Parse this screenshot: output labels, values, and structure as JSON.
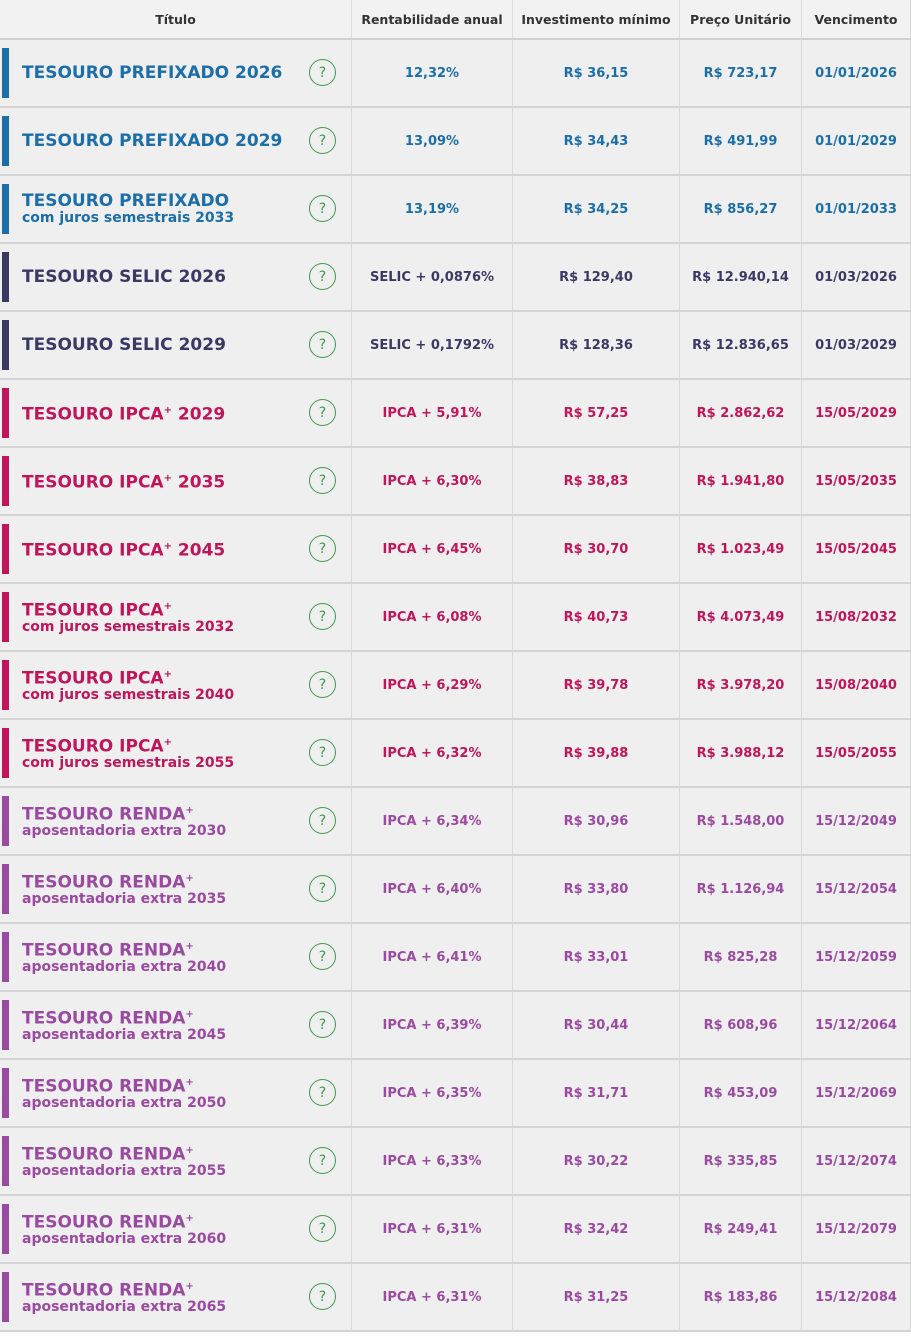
{
  "table": {
    "header": [
      "Título",
      "Rentabilidade anual",
      "Investimento mínimo",
      "Preço Unitário",
      "Vencimento"
    ],
    "help_icon": "?",
    "rows": [
      {
        "name": "TESOURO PREFIXADO",
        "year": "2026",
        "rate": "12,32%",
        "min": "R$ 36,15",
        "price": "R$ 723,17",
        "maturity": "01/01/2026",
        "color": "#1b6ea8"
      },
      {
        "name": "TESOURO PREFIXADO",
        "year": "2029",
        "rate": "13,09%",
        "min": "R$ 34,43",
        "price": "R$ 491,99",
        "maturity": "01/01/2029",
        "color": "#1b6ea8"
      },
      {
        "name": "TESOURO PREFIXADO",
        "subtitle": "com juros semestrais",
        "year": "2033",
        "rate": "13,19%",
        "min": "R$ 34,25",
        "price": "R$ 856,27",
        "maturity": "01/01/2033",
        "color": "#1b6ea8"
      },
      {
        "name": "TESOURO SELIC",
        "year": "2026",
        "rate": "SELIC + 0,0876%",
        "min": "R$ 129,40",
        "price": "R$ 12.940,14",
        "maturity": "01/03/2026",
        "color": "#3b3864"
      },
      {
        "name": "TESOURO SELIC",
        "year": "2029",
        "rate": "SELIC + 0,1792%",
        "min": "R$ 128,36",
        "price": "R$ 12.836,65",
        "maturity": "01/03/2029",
        "color": "#3b3864"
      },
      {
        "name": "TESOURO IPCA",
        "sup": "+",
        "year": "2029",
        "rate": "IPCA + 5,91%",
        "min": "R$ 57,25",
        "price": "R$ 2.862,62",
        "maturity": "15/05/2029",
        "color": "#c0155a"
      },
      {
        "name": "TESOURO IPCA",
        "sup": "+",
        "year": "2035",
        "rate": "IPCA + 6,30%",
        "min": "R$ 38,83",
        "price": "R$ 1.941,80",
        "maturity": "15/05/2035",
        "color": "#c0155a"
      },
      {
        "name": "TESOURO IPCA",
        "sup": "+",
        "year": "2045",
        "rate": "IPCA + 6,45%",
        "min": "R$ 30,70",
        "price": "R$ 1.023,49",
        "maturity": "15/05/2045",
        "color": "#c0155a"
      },
      {
        "name": "TESOURO IPCA",
        "sup": "+",
        "subtitle": "com juros semestrais",
        "year": "2032",
        "rate": "IPCA + 6,08%",
        "min": "R$ 40,73",
        "price": "R$ 4.073,49",
        "maturity": "15/08/2032",
        "color": "#c0155a"
      },
      {
        "name": "TESOURO IPCA",
        "sup": "+",
        "subtitle": "com juros semestrais",
        "year": "2040",
        "rate": "IPCA + 6,29%",
        "min": "R$ 39,78",
        "price": "R$ 3.978,20",
        "maturity": "15/08/2040",
        "color": "#c0155a"
      },
      {
        "name": "TESOURO IPCA",
        "sup": "+",
        "subtitle": "com juros semestrais",
        "year": "2055",
        "rate": "IPCA + 6,32%",
        "min": "R$ 39,88",
        "price": "R$ 3.988,12",
        "maturity": "15/05/2055",
        "color": "#c0155a"
      },
      {
        "name": "TESOURO RENDA",
        "sup": "+",
        "subtitle": "aposentadoria extra",
        "year": "2030",
        "rate": "IPCA + 6,34%",
        "min": "R$ 30,96",
        "price": "R$ 1.548,00",
        "maturity": "15/12/2049",
        "color": "#9a4aa0"
      },
      {
        "name": "TESOURO RENDA",
        "sup": "+",
        "subtitle": "aposentadoria extra",
        "year": "2035",
        "rate": "IPCA + 6,40%",
        "min": "R$ 33,80",
        "price": "R$ 1.126,94",
        "maturity": "15/12/2054",
        "color": "#9a4aa0"
      },
      {
        "name": "TESOURO RENDA",
        "sup": "+",
        "subtitle": "aposentadoria extra",
        "year": "2040",
        "rate": "IPCA + 6,41%",
        "min": "R$ 33,01",
        "price": "R$ 825,28",
        "maturity": "15/12/2059",
        "color": "#9a4aa0"
      },
      {
        "name": "TESOURO RENDA",
        "sup": "+",
        "subtitle": "aposentadoria extra",
        "year": "2045",
        "rate": "IPCA + 6,39%",
        "min": "R$ 30,44",
        "price": "R$ 608,96",
        "maturity": "15/12/2064",
        "color": "#9a4aa0"
      },
      {
        "name": "TESOURO RENDA",
        "sup": "+",
        "subtitle": "aposentadoria extra",
        "year": "2050",
        "rate": "IPCA + 6,35%",
        "min": "R$ 31,71",
        "price": "R$ 453,09",
        "maturity": "15/12/2069",
        "color": "#9a4aa0"
      },
      {
        "name": "TESOURO RENDA",
        "sup": "+",
        "subtitle": "aposentadoria extra",
        "year": "2055",
        "rate": "IPCA + 6,33%",
        "min": "R$ 30,22",
        "price": "R$ 335,85",
        "maturity": "15/12/2074",
        "color": "#9a4aa0"
      },
      {
        "name": "TESOURO RENDA",
        "sup": "+",
        "subtitle": "aposentadoria extra",
        "year": "2060",
        "rate": "IPCA + 6,31%",
        "min": "R$ 32,42",
        "price": "R$ 249,41",
        "maturity": "15/12/2079",
        "color": "#9a4aa0"
      },
      {
        "name": "TESOURO RENDA",
        "sup": "+",
        "subtitle": "aposentadoria extra",
        "year": "2065",
        "rate": "IPCA + 6,31%",
        "min": "R$ 31,25",
        "price": "R$ 183,86",
        "maturity": "15/12/2084",
        "color": "#9a4aa0"
      }
    ]
  }
}
